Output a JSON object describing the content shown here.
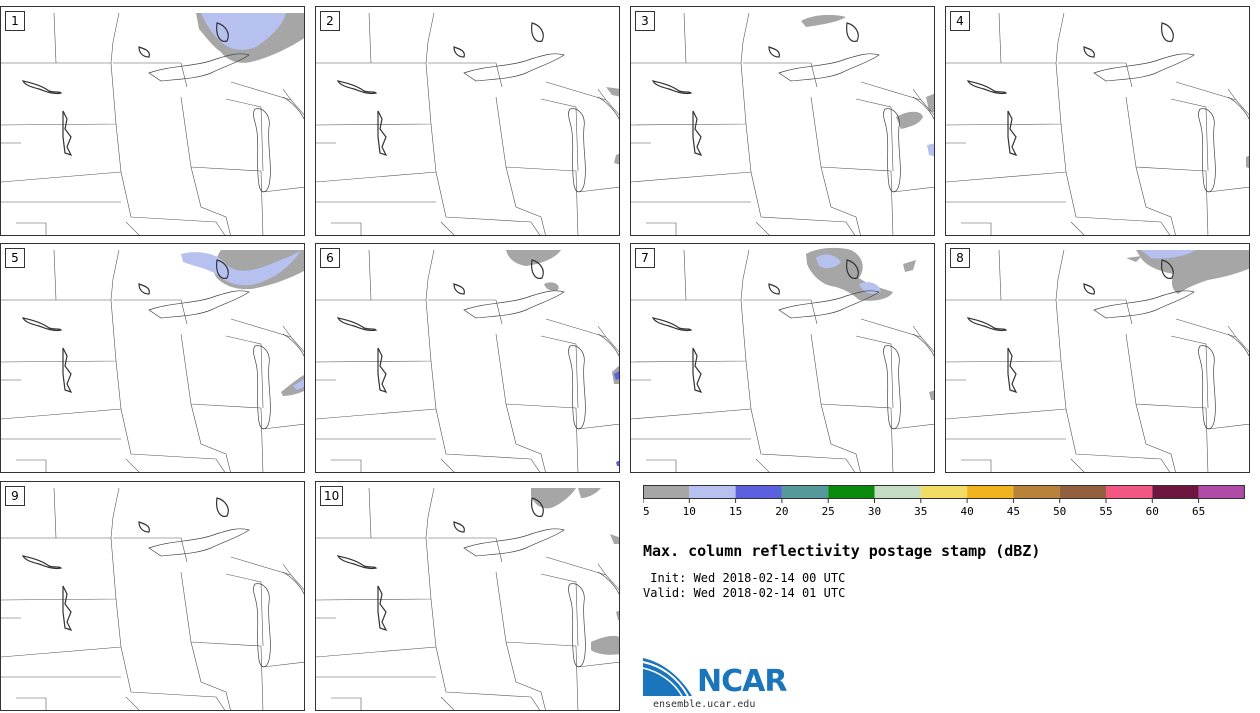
{
  "panels": [
    {
      "label": "1"
    },
    {
      "label": "2"
    },
    {
      "label": "3"
    },
    {
      "label": "4"
    },
    {
      "label": "5"
    },
    {
      "label": "6"
    },
    {
      "label": "7"
    },
    {
      "label": "8"
    },
    {
      "label": "9"
    },
    {
      "label": "10"
    }
  ],
  "colorbar": {
    "ticks": [
      "5",
      "10",
      "15",
      "20",
      "25",
      "30",
      "35",
      "40",
      "45",
      "50",
      "55",
      "60",
      "65"
    ],
    "colors": [
      "#a6a6a6",
      "#b7c1ef",
      "#5a60de",
      "#55999c",
      "#0a8a0a",
      "#c3dcc2",
      "#f1dd66",
      "#f0b21e",
      "#b8823a",
      "#93603f",
      "#f25682",
      "#6e163e",
      "#b04ca7"
    ]
  },
  "title": "Max. column reflectivity postage stamp (dBZ)",
  "init": " Init: Wed 2018-02-14 00 UTC",
  "valid": "Valid: Wed 2018-02-14 01 UTC",
  "logo": {
    "text": "NCAR",
    "url": "ensemble.ucar.edu"
  }
}
